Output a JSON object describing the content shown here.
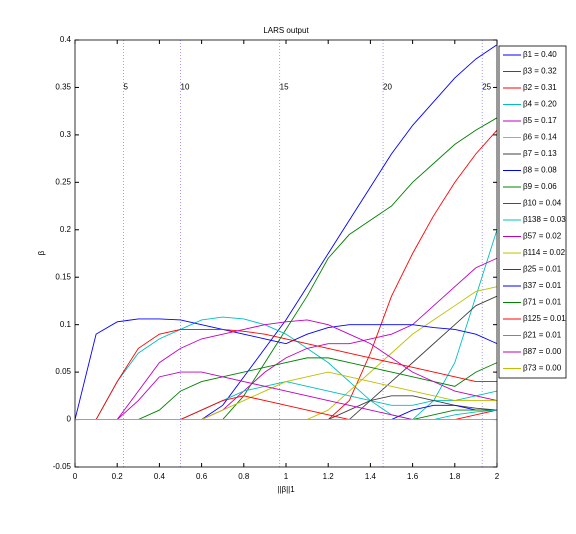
{
  "chart_data": {
    "type": "line",
    "title": "LARS output",
    "x_label": "||β||1",
    "y_label": "β",
    "xlim": [
      0,
      2
    ],
    "ylim": [
      -0.05,
      0.4
    ],
    "xticks": [
      0,
      0.2,
      0.4,
      0.6,
      0.8,
      1,
      1.2,
      1.4,
      1.6,
      1.8,
      2
    ],
    "yticks": [
      -0.05,
      0,
      0.05,
      0.1,
      0.15,
      0.2,
      0.25,
      0.3,
      0.35,
      0.4
    ],
    "step_markers": [
      {
        "value": 0.23,
        "label": "5"
      },
      {
        "value": 0.5,
        "label": "10"
      },
      {
        "value": 0.97,
        "label": "15"
      },
      {
        "value": 1.46,
        "label": "20"
      },
      {
        "value": 1.93,
        "label": "25"
      }
    ],
    "x": [
      0,
      0.1,
      0.2,
      0.3,
      0.4,
      0.5,
      0.6,
      0.7,
      0.8,
      0.9,
      1,
      1.1,
      1.2,
      1.3,
      1.4,
      1.5,
      1.6,
      1.7,
      1.8,
      1.9,
      2
    ],
    "series": [
      {
        "name": "β1 = 0.40",
        "color": "#0000ff",
        "values": [
          0,
          0,
          0,
          0,
          0,
          0,
          0,
          0.015,
          0.045,
          0.075,
          0.105,
          0.14,
          0.175,
          0.21,
          0.245,
          0.28,
          0.31,
          0.335,
          0.36,
          0.38,
          0.395
        ]
      },
      {
        "name": "β3 = 0.32",
        "color": "#008000",
        "values": [
          0,
          0,
          0,
          0,
          0,
          0,
          0,
          0,
          0.025,
          0.06,
          0.095,
          0.13,
          0.17,
          0.195,
          0.21,
          0.225,
          0.25,
          0.27,
          0.29,
          0.305,
          0.318
        ]
      },
      {
        "name": "β2 = 0.31",
        "color": "#ff0000",
        "values": [
          0,
          0,
          0,
          0,
          0,
          0,
          0,
          0,
          0,
          0,
          0,
          0,
          0,
          0.02,
          0.07,
          0.13,
          0.175,
          0.215,
          0.25,
          0.28,
          0.305
        ]
      },
      {
        "name": "β4 = 0.20",
        "color": "#00bfbf",
        "values": [
          0,
          0,
          0.04,
          0.07,
          0.085,
          0.095,
          0.105,
          0.108,
          0.106,
          0.1,
          0.09,
          0.075,
          0.06,
          0.04,
          0.02,
          0.005,
          0,
          0.02,
          0.06,
          0.13,
          0.2
        ]
      },
      {
        "name": "β5 = 0.17",
        "color": "#bf00bf",
        "values": [
          0,
          0,
          0,
          0,
          0,
          0,
          0,
          0.01,
          0.03,
          0.05,
          0.065,
          0.075,
          0.08,
          0.08,
          0.085,
          0.09,
          0.1,
          0.12,
          0.14,
          0.16,
          0.17
        ]
      },
      {
        "name": "β6 = 0.14",
        "color": "#bfbf00",
        "values": [
          0,
          0,
          0,
          0,
          0,
          0,
          0,
          0,
          0,
          0,
          0,
          0,
          0.01,
          0.03,
          0.05,
          0.07,
          0.09,
          0.105,
          0.12,
          0.135,
          0.14
        ]
      },
      {
        "name": "β7 = 0.13",
        "color": "#404040",
        "values": [
          0,
          0,
          0,
          0,
          0,
          0,
          0,
          0,
          0,
          0,
          0,
          0,
          0,
          0,
          0.02,
          0.04,
          0.06,
          0.08,
          0.1,
          0.12,
          0.13
        ]
      },
      {
        "name": "β8 = 0.08",
        "color": "#0000ff",
        "values": [
          0,
          0.09,
          0.103,
          0.106,
          0.106,
          0.105,
          0.1,
          0.095,
          0.09,
          0.085,
          0.08,
          0.09,
          0.097,
          0.1,
          0.1,
          0.1,
          0.1,
          0.097,
          0.095,
          0.09,
          0.08
        ]
      },
      {
        "name": "β9 = 0.06",
        "color": "#008000",
        "values": [
          0,
          0,
          0,
          0,
          0.01,
          0.03,
          0.04,
          0.045,
          0.05,
          0.055,
          0.06,
          0.065,
          0.065,
          0.06,
          0.055,
          0.05,
          0.045,
          0.04,
          0.035,
          0.05,
          0.06
        ]
      },
      {
        "name": "β10 = 0.04",
        "color": "#ff0000",
        "values": [
          0,
          0,
          0.04,
          0.075,
          0.09,
          0.095,
          0.095,
          0.095,
          0.093,
          0.09,
          0.085,
          0.08,
          0.075,
          0.07,
          0.065,
          0.06,
          0.055,
          0.05,
          0.045,
          0.04,
          0.04
        ]
      },
      {
        "name": "β138 = 0.03",
        "color": "#00bfbf",
        "values": [
          0,
          0,
          0,
          0,
          0,
          0,
          0.01,
          0.02,
          0.03,
          0.035,
          0.04,
          0.035,
          0.03,
          0.025,
          0.02,
          0.015,
          0.015,
          0.02,
          0.02,
          0.025,
          0.03
        ]
      },
      {
        "name": "β57 = 0.02",
        "color": "#bf00bf",
        "values": [
          0,
          0,
          0,
          0.03,
          0.06,
          0.075,
          0.085,
          0.09,
          0.095,
          0.1,
          0.103,
          0.105,
          0.1,
          0.09,
          0.08,
          0.065,
          0.05,
          0.04,
          0.03,
          0.025,
          0.02
        ]
      },
      {
        "name": "β114 = 0.02",
        "color": "#bfbf00",
        "values": [
          0,
          0,
          0,
          0,
          0,
          0,
          0,
          0.01,
          0.02,
          0.03,
          0.04,
          0.045,
          0.05,
          0.045,
          0.04,
          0.035,
          0.03,
          0.025,
          0.02,
          0.02,
          0.02
        ]
      },
      {
        "name": "β25 = 0.01",
        "color": "#404040",
        "values": [
          0,
          0,
          0,
          0,
          0,
          0,
          0,
          0,
          0,
          0,
          0,
          0,
          0,
          0.01,
          0.02,
          0.025,
          0.025,
          0.02,
          0.015,
          0.012,
          0.01
        ]
      },
      {
        "name": "β37 = 0.01",
        "color": "#0000ff",
        "values": [
          0,
          0,
          0,
          0,
          0,
          0,
          0,
          0,
          0,
          0,
          0,
          0,
          0,
          0,
          0,
          0,
          0.01,
          0.015,
          0.015,
          0.01,
          0.01
        ]
      },
      {
        "name": "β71 = 0.01",
        "color": "#008000",
        "values": [
          0,
          0,
          0,
          0,
          0,
          0,
          0,
          0,
          0,
          0,
          0,
          0,
          0,
          0,
          0,
          0,
          0,
          0.005,
          0.01,
          0.01,
          0.01
        ]
      },
      {
        "name": "β125 = 0.01",
        "color": "#ff0000",
        "values": [
          0,
          0,
          0,
          0,
          0,
          0,
          0.01,
          0.02,
          0.025,
          0.02,
          0.015,
          0.01,
          0.005,
          0,
          0,
          0,
          0,
          0,
          0,
          0.005,
          0.01
        ]
      },
      {
        "name": "β21 = 0.01",
        "color": "#00bfbf",
        "values": [
          0,
          0,
          0,
          0,
          0,
          0,
          0,
          0,
          0,
          0,
          0,
          0,
          0,
          0,
          0,
          0,
          0,
          0,
          0.005,
          0.008,
          0.01
        ]
      },
      {
        "name": "β87 = 0.00",
        "color": "#bf00bf",
        "values": [
          0,
          0,
          0,
          0.02,
          0.045,
          0.05,
          0.05,
          0.045,
          0.04,
          0.035,
          0.03,
          0.025,
          0.02,
          0.015,
          0.01,
          0.005,
          0,
          0,
          0,
          0,
          0
        ]
      },
      {
        "name": "β73 = 0.00",
        "color": "#bfbf00",
        "values": [
          0,
          0,
          0,
          0,
          0,
          0,
          0,
          0,
          0,
          0,
          0,
          0,
          0,
          0,
          0,
          0,
          0,
          0,
          0,
          0,
          0
        ]
      }
    ]
  }
}
